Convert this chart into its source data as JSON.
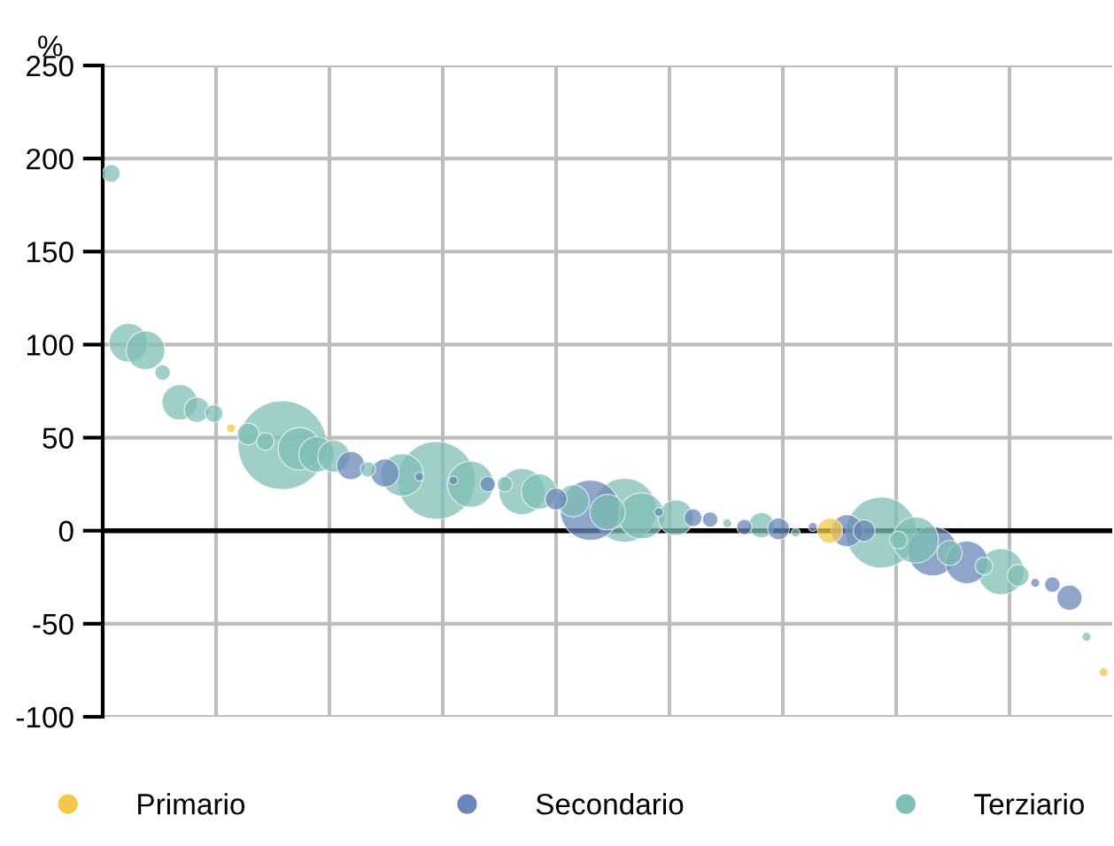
{
  "chart_data": {
    "type": "bubble",
    "ylabel": "%",
    "ylim": [
      -100,
      250
    ],
    "yticks": [
      -100,
      -50,
      0,
      50,
      100,
      150,
      200,
      250
    ],
    "grid": true,
    "legend": "bottom",
    "tick_labels": "y",
    "categories": [
      null,
      null,
      null,
      null,
      null,
      null,
      null,
      null,
      null,
      null,
      null,
      null,
      null,
      null,
      null,
      null,
      null,
      null,
      null,
      null,
      null,
      null,
      null,
      null,
      null,
      null,
      null,
      null,
      null,
      null,
      null,
      null,
      null,
      null,
      null,
      null,
      null,
      null,
      null,
      null,
      null,
      null,
      null,
      null,
      null,
      null,
      null,
      null,
      null,
      null,
      null,
      null,
      null,
      null,
      null,
      null,
      null,
      null,
      null
    ],
    "ref_lines": [
      {
        "axis": "y",
        "value": 0,
        "color": "#000000"
      }
    ],
    "series": [
      {
        "name": "Primario",
        "color": "#f2c94c",
        "values": [
          null,
          null,
          null,
          null,
          null,
          null,
          null,
          55,
          null,
          null,
          null,
          null,
          null,
          null,
          null,
          null,
          null,
          null,
          null,
          null,
          null,
          null,
          null,
          null,
          null,
          null,
          null,
          null,
          null,
          null,
          null,
          null,
          null,
          null,
          null,
          null,
          null,
          null,
          null,
          null,
          null,
          null,
          0,
          null,
          null,
          null,
          null,
          null,
          null,
          null,
          null,
          null,
          null,
          null,
          null,
          null,
          null,
          null,
          -76
        ],
        "sizes": [
          null,
          null,
          null,
          null,
          null,
          null,
          null,
          0.01,
          null,
          null,
          null,
          null,
          null,
          null,
          null,
          null,
          null,
          null,
          null,
          null,
          null,
          null,
          null,
          null,
          null,
          null,
          null,
          null,
          null,
          null,
          null,
          null,
          null,
          null,
          null,
          null,
          null,
          null,
          null,
          null,
          null,
          null,
          0.08,
          null,
          null,
          null,
          null,
          null,
          null,
          null,
          null,
          null,
          null,
          null,
          null,
          null,
          null,
          null,
          0.01
        ]
      },
      {
        "name": "Secondario",
        "color": "#6a87b8",
        "values": [
          null,
          null,
          null,
          null,
          null,
          null,
          null,
          null,
          null,
          null,
          null,
          null,
          null,
          null,
          35,
          null,
          31,
          null,
          29,
          null,
          27,
          null,
          25,
          null,
          null,
          null,
          17,
          null,
          11,
          null,
          null,
          null,
          10,
          null,
          7,
          6,
          null,
          2,
          null,
          1,
          null,
          2,
          null,
          0,
          0,
          null,
          null,
          null,
          -11,
          null,
          -17,
          null,
          null,
          null,
          -28,
          -29,
          -36,
          null,
          null
        ],
        "sizes": [
          null,
          null,
          null,
          null,
          null,
          null,
          null,
          null,
          null,
          null,
          null,
          null,
          null,
          null,
          0.1,
          null,
          0.1,
          null,
          0.01,
          null,
          0.01,
          null,
          0.03,
          null,
          null,
          null,
          0.06,
          null,
          0.46,
          null,
          null,
          null,
          0.01,
          null,
          0.04,
          0.03,
          null,
          0.03,
          null,
          0.06,
          null,
          0.01,
          null,
          0.13,
          0.06,
          null,
          null,
          null,
          0.31,
          null,
          0.23,
          null,
          null,
          null,
          0.01,
          0.03,
          0.08,
          null,
          null
        ]
      },
      {
        "name": "Terziario",
        "color": "#7fbfb5",
        "values": [
          192,
          101,
          97,
          85,
          69,
          65,
          63,
          null,
          52,
          48,
          46,
          44,
          41,
          40,
          null,
          33,
          null,
          30,
          null,
          27,
          null,
          25,
          null,
          25,
          21,
          21,
          null,
          16,
          null,
          10,
          11,
          8,
          null,
          7,
          null,
          null,
          4,
          null,
          3,
          null,
          -1,
          null,
          null,
          null,
          null,
          -1,
          -5,
          -5,
          null,
          -12,
          null,
          -19,
          -22,
          -24,
          null,
          null,
          null,
          -57,
          null
        ],
        "sizes": [
          0.04,
          0.19,
          0.19,
          0.03,
          0.16,
          0.08,
          0.04,
          null,
          0.06,
          0.04,
          1,
          0.23,
          0.16,
          0.13,
          null,
          0.03,
          null,
          0.23,
          null,
          0.77,
          null,
          0.27,
          null,
          0.03,
          0.27,
          0.16,
          null,
          0.13,
          null,
          0.16,
          0.52,
          0.27,
          null,
          0.16,
          null,
          null,
          0.01,
          null,
          0.08,
          null,
          0.01,
          null,
          null,
          null,
          null,
          0.64,
          0.04,
          0.27,
          null,
          0.08,
          null,
          0.04,
          0.27,
          0.06,
          null,
          null,
          null,
          0.01,
          null
        ]
      }
    ]
  }
}
